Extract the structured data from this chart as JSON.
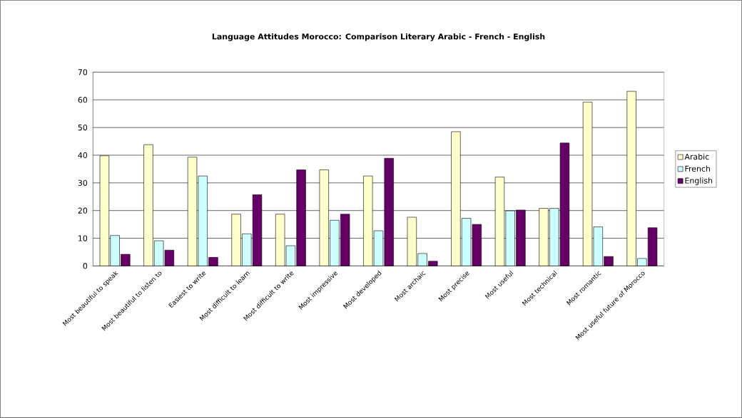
{
  "chart_data": {
    "type": "bar",
    "title": "Language Attitudes Morocco: Comparison Literary Arabic - French - English",
    "categories": [
      "Most beautiful to speak",
      "Most beautiful to listen to",
      "Easiest to write",
      "Most difficult to learn",
      "Most difficult to write",
      "Most impressive",
      "Most developed",
      "Most archaic",
      "Most precise",
      "Most useful",
      "Most technical",
      "Most romantic",
      "Most useful future of Morocco"
    ],
    "series": [
      {
        "name": "Arabic",
        "color": "#ffffcc",
        "values": [
          39.8,
          43.8,
          39.3,
          18.7,
          18.7,
          34.7,
          32.5,
          17.6,
          48.5,
          32.1,
          20.8,
          59.2,
          63.1
        ]
      },
      {
        "name": "French",
        "color": "#ccffff",
        "values": [
          11.0,
          9.1,
          32.5,
          11.6,
          7.3,
          16.5,
          12.7,
          4.5,
          17.2,
          19.9,
          20.8,
          14.1,
          2.7
        ]
      },
      {
        "name": "English",
        "color": "#660066",
        "values": [
          4.2,
          5.7,
          3.1,
          25.7,
          34.7,
          18.7,
          38.9,
          1.7,
          15.0,
          20.2,
          44.4,
          3.4,
          13.8
        ]
      }
    ],
    "ylim": [
      0,
      70
    ],
    "yticks": [
      0,
      10,
      20,
      30,
      40,
      50,
      60,
      70
    ],
    "grid": "y",
    "legend": "right"
  }
}
